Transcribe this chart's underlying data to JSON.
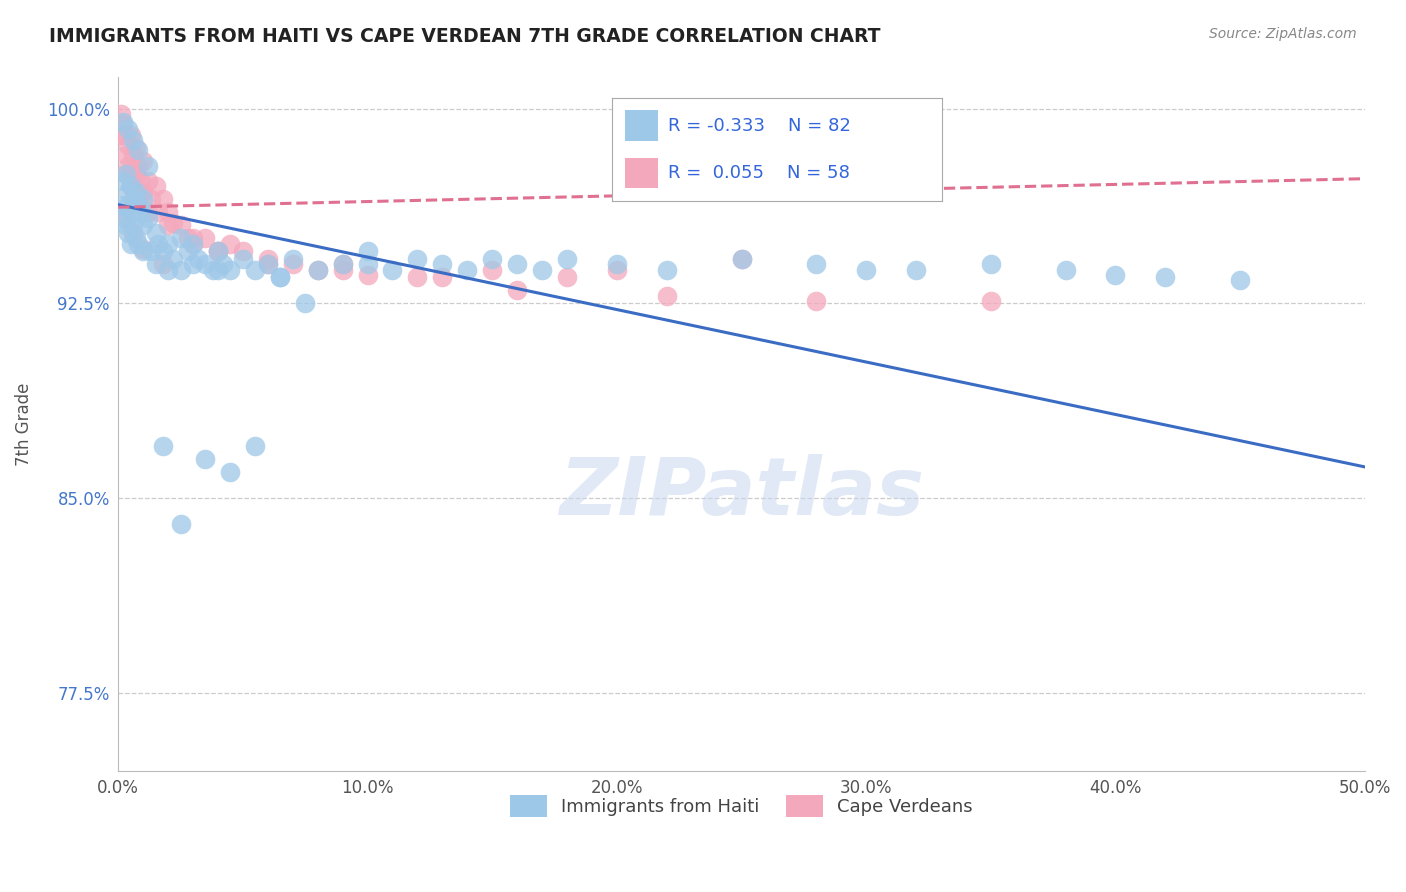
{
  "title": "IMMIGRANTS FROM HAITI VS CAPE VERDEAN 7TH GRADE CORRELATION CHART",
  "source": "Source: ZipAtlas.com",
  "ylabel": "7th Grade",
  "xlim": [
    0.0,
    0.5
  ],
  "ylim": [
    0.745,
    1.012
  ],
  "xticks": [
    0.0,
    0.1,
    0.2,
    0.3,
    0.4,
    0.5
  ],
  "xtick_labels": [
    "0.0%",
    "10.0%",
    "20.0%",
    "30.0%",
    "40.0%",
    "50.0%"
  ],
  "yticks": [
    0.775,
    0.85,
    0.925,
    1.0
  ],
  "ytick_labels": [
    "77.5%",
    "85.0%",
    "92.5%",
    "100.0%"
  ],
  "haiti_R": -0.333,
  "haiti_N": 82,
  "capeverde_R": 0.055,
  "capeverde_N": 58,
  "haiti_color": "#9EC8E8",
  "capeverde_color": "#F4A8BC",
  "haiti_line_color": "#3B6CC4",
  "capeverde_line_color": "#E07090",
  "legend_label_haiti": "Immigrants from Haiti",
  "legend_label_cv": "Cape Verdeans",
  "watermark": "ZIPatlas",
  "haiti_line_x0": 0.0,
  "haiti_line_y0": 0.963,
  "haiti_line_x1": 0.5,
  "haiti_line_y1": 0.862,
  "cv_line_x0": 0.0,
  "cv_line_y0": 0.962,
  "cv_line_x1": 0.5,
  "cv_line_y1": 0.973,
  "haiti_x": [
    0.001,
    0.002,
    0.002,
    0.003,
    0.003,
    0.003,
    0.004,
    0.004,
    0.005,
    0.005,
    0.005,
    0.006,
    0.006,
    0.007,
    0.007,
    0.008,
    0.008,
    0.009,
    0.01,
    0.01,
    0.01,
    0.012,
    0.013,
    0.015,
    0.015,
    0.016,
    0.018,
    0.02,
    0.02,
    0.022,
    0.025,
    0.025,
    0.028,
    0.03,
    0.03,
    0.032,
    0.035,
    0.038,
    0.04,
    0.04,
    0.042,
    0.045,
    0.05,
    0.055,
    0.06,
    0.065,
    0.07,
    0.08,
    0.09,
    0.1,
    0.1,
    0.11,
    0.12,
    0.13,
    0.14,
    0.15,
    0.16,
    0.17,
    0.18,
    0.2,
    0.22,
    0.25,
    0.28,
    0.3,
    0.32,
    0.35,
    0.38,
    0.4,
    0.42,
    0.45,
    0.002,
    0.004,
    0.006,
    0.008,
    0.012,
    0.018,
    0.025,
    0.035,
    0.045,
    0.055,
    0.065,
    0.075
  ],
  "haiti_y": [
    0.963,
    0.972,
    0.958,
    0.975,
    0.962,
    0.955,
    0.968,
    0.952,
    0.97,
    0.96,
    0.948,
    0.965,
    0.955,
    0.968,
    0.95,
    0.963,
    0.948,
    0.96,
    0.965,
    0.955,
    0.945,
    0.958,
    0.945,
    0.952,
    0.94,
    0.948,
    0.945,
    0.948,
    0.938,
    0.942,
    0.95,
    0.938,
    0.945,
    0.948,
    0.94,
    0.942,
    0.94,
    0.938,
    0.945,
    0.938,
    0.94,
    0.938,
    0.942,
    0.938,
    0.94,
    0.935,
    0.942,
    0.938,
    0.94,
    0.945,
    0.94,
    0.938,
    0.942,
    0.94,
    0.938,
    0.942,
    0.94,
    0.938,
    0.942,
    0.94,
    0.938,
    0.942,
    0.94,
    0.938,
    0.938,
    0.94,
    0.938,
    0.936,
    0.935,
    0.934,
    0.995,
    0.992,
    0.988,
    0.984,
    0.978,
    0.87,
    0.84,
    0.865,
    0.86,
    0.87,
    0.935,
    0.925
  ],
  "capeverde_x": [
    0.001,
    0.001,
    0.002,
    0.003,
    0.003,
    0.004,
    0.004,
    0.005,
    0.005,
    0.006,
    0.007,
    0.007,
    0.008,
    0.009,
    0.01,
    0.01,
    0.012,
    0.013,
    0.015,
    0.016,
    0.018,
    0.02,
    0.022,
    0.025,
    0.028,
    0.03,
    0.035,
    0.04,
    0.045,
    0.05,
    0.06,
    0.07,
    0.08,
    0.09,
    0.1,
    0.12,
    0.15,
    0.18,
    0.2,
    0.25,
    0.003,
    0.005,
    0.008,
    0.012,
    0.02,
    0.03,
    0.04,
    0.06,
    0.09,
    0.13,
    0.16,
    0.22,
    0.28,
    0.35,
    0.003,
    0.006,
    0.01,
    0.018
  ],
  "capeverde_y": [
    0.998,
    0.99,
    0.994,
    0.99,
    0.982,
    0.986,
    0.978,
    0.99,
    0.975,
    0.982,
    0.985,
    0.975,
    0.978,
    0.972,
    0.98,
    0.968,
    0.972,
    0.965,
    0.97,
    0.96,
    0.965,
    0.96,
    0.956,
    0.955,
    0.95,
    0.948,
    0.95,
    0.945,
    0.948,
    0.945,
    0.942,
    0.94,
    0.938,
    0.94,
    0.936,
    0.935,
    0.938,
    0.935,
    0.938,
    0.942,
    0.975,
    0.97,
    0.965,
    0.96,
    0.955,
    0.95,
    0.945,
    0.94,
    0.938,
    0.935,
    0.93,
    0.928,
    0.926,
    0.926,
    0.958,
    0.952,
    0.946,
    0.94
  ]
}
